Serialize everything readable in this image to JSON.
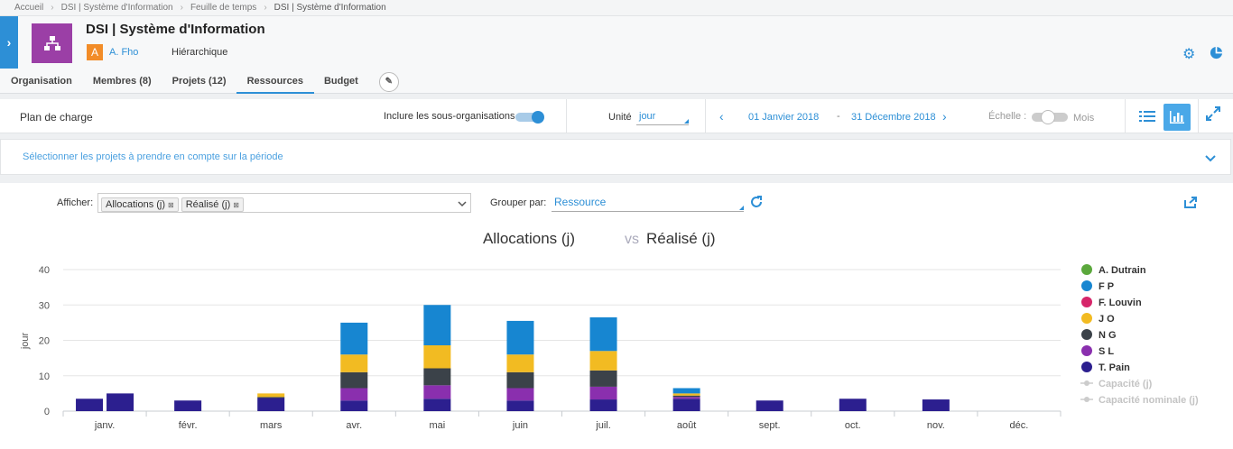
{
  "breadcrumb": [
    "Accueil",
    "DSI | Système d'Information",
    "Feuille de temps",
    "DSI | Système d'Information"
  ],
  "header": {
    "title": "DSI | Système d'Information",
    "owner_initial": "A",
    "owner_name": "A. Fho",
    "hierarchy_label": "Hiérarchique"
  },
  "tabs": [
    {
      "label": "Organisation",
      "active": false
    },
    {
      "label": "Membres (8)",
      "active": false
    },
    {
      "label": "Projets (12)",
      "active": false
    },
    {
      "label": "Ressources",
      "active": true
    },
    {
      "label": "Budget",
      "active": false
    }
  ],
  "toolbar": {
    "section_title": "Plan de charge",
    "include_sub_orgs_label": "Inclure les sous-organisations",
    "unit_label": "Unité",
    "unit_value": "jour",
    "start_date": "01 Janvier 2018",
    "date_separator": "-",
    "end_date": "31 Décembre 2018",
    "scale_label": "Échelle :",
    "scale_value": "Mois"
  },
  "selection_bar": {
    "text": "Sélectionner les projets à prendre en compte sur la période"
  },
  "filters": {
    "show_label": "Afficher:",
    "chips": [
      "Allocations (j)",
      "Réalisé (j)"
    ],
    "group_label": "Grouper par:",
    "group_value": "Ressource"
  },
  "colors": {
    "accent": "#2d8fd6",
    "A. Dutrain": "#5ba83c",
    "F P": "#1786d1",
    "F. Louvin": "#d6266a",
    "J O": "#f2bb22",
    "N G": "#3b4249",
    "S L": "#8a2fae",
    "T. Pain": "#2c1f8f"
  },
  "chart_data": {
    "type": "bar",
    "title_part1": "Allocations (j)",
    "title_vs": "vs",
    "title_part2": "Réalisé (j)",
    "ylabel": "jour",
    "ylim": [
      0,
      40
    ],
    "yticks": [
      0,
      10,
      20,
      30,
      40
    ],
    "categories": [
      "janv.",
      "févr.",
      "mars",
      "avr.",
      "mai",
      "juin",
      "juil.",
      "août",
      "sept.",
      "oct.",
      "nov.",
      "déc."
    ],
    "stacked_series": [
      {
        "name": "T. Pain",
        "values": [
          3.5,
          3,
          3.7,
          3,
          3.5,
          3,
          3.3,
          3.5,
          3,
          3.5,
          3.3,
          0
        ]
      },
      {
        "name": "S L",
        "values": [
          0,
          0,
          0,
          3.5,
          3.8,
          3.5,
          3.6,
          0.5,
          0,
          0,
          0,
          0
        ]
      },
      {
        "name": "N G",
        "values": [
          0,
          0,
          0.3,
          4.5,
          4.8,
          4.5,
          4.6,
          0.4,
          0,
          0,
          0,
          0
        ]
      },
      {
        "name": "J O",
        "values": [
          0,
          0,
          1,
          5,
          6.5,
          5,
          5.5,
          0.6,
          0,
          0,
          0,
          0
        ]
      },
      {
        "name": "F P",
        "values": [
          0,
          0,
          0,
          9,
          11.4,
          9.5,
          9.5,
          1.5,
          0,
          0,
          0,
          0
        ]
      }
    ],
    "realise_series": {
      "name": "Réalisé (j)",
      "values": [
        5,
        null,
        null,
        null,
        null,
        null,
        null,
        null,
        null,
        null,
        null,
        null
      ]
    },
    "legend": [
      {
        "name": "A. Dutrain",
        "type": "dot",
        "muted": false
      },
      {
        "name": "F P",
        "type": "dot",
        "muted": false
      },
      {
        "name": "F. Louvin",
        "type": "dot",
        "muted": false
      },
      {
        "name": "J O",
        "type": "dot",
        "muted": false
      },
      {
        "name": "N G",
        "type": "dot",
        "muted": false
      },
      {
        "name": "S L",
        "type": "dot",
        "muted": false
      },
      {
        "name": "T. Pain",
        "type": "dot",
        "muted": false
      },
      {
        "name": "Capacité (j)",
        "type": "line",
        "muted": true
      },
      {
        "name": "Capacité nominale (j)",
        "type": "line",
        "muted": true
      }
    ],
    "legend_position": "right"
  }
}
